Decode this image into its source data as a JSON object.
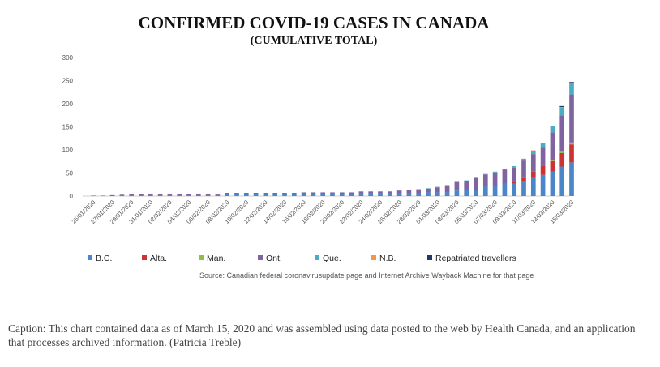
{
  "caption": "Caption: This chart contained data as of March 15, 2020 and was assembled using data posted to the web by Health Canada, and an application that processes archived information. (Patricia Treble)",
  "chart_data": {
    "type": "bar",
    "stacked": true,
    "title": "CONFIRMED COVID-19 CASES IN CANADA",
    "subtitle": "(CUMULATIVE TOTAL)",
    "ylim": [
      0,
      300
    ],
    "yticks": [
      0,
      50,
      100,
      150,
      200,
      250,
      300
    ],
    "grid": false,
    "legend_position": "bottom",
    "source": "Source: Canadian federal coronavirusupdate page and Internet Archive Wayback Machine for that page",
    "x_tick_labels": [
      "25/01/2020",
      "27/01/2020",
      "29/01/2020",
      "31/01/2020",
      "02/02/2020",
      "04/02/2020",
      "06/02/2020",
      "08/02/2020",
      "10/02/2020",
      "12/02/2020",
      "14/02/2020",
      "16/02/2020",
      "18/02/2020",
      "20/02/2020",
      "22/02/2020",
      "24/02/2020",
      "26/02/2020",
      "28/02/2020",
      "01/03/2020",
      "03/03/2020",
      "05/03/2020",
      "07/03/2020",
      "09/03/2020",
      "11/03/2020",
      "13/03/2020",
      "15/03/2020"
    ],
    "categories": [
      "25/01/2020",
      "26/01/2020",
      "27/01/2020",
      "28/01/2020",
      "29/01/2020",
      "30/01/2020",
      "31/01/2020",
      "01/02/2020",
      "02/02/2020",
      "03/02/2020",
      "04/02/2020",
      "05/02/2020",
      "06/02/2020",
      "07/02/2020",
      "08/02/2020",
      "09/02/2020",
      "10/02/2020",
      "11/02/2020",
      "12/02/2020",
      "13/02/2020",
      "14/02/2020",
      "15/02/2020",
      "16/02/2020",
      "17/02/2020",
      "18/02/2020",
      "19/02/2020",
      "20/02/2020",
      "21/02/2020",
      "22/02/2020",
      "23/02/2020",
      "24/02/2020",
      "25/02/2020",
      "26/02/2020",
      "27/02/2020",
      "28/02/2020",
      "29/02/2020",
      "01/03/2020",
      "02/03/2020",
      "03/03/2020",
      "04/03/2020",
      "05/03/2020",
      "06/03/2020",
      "07/03/2020",
      "08/03/2020",
      "09/03/2020",
      "10/03/2020",
      "11/03/2020",
      "12/03/2020",
      "13/03/2020",
      "14/03/2020",
      "15/03/2020"
    ],
    "series": [
      {
        "name": "B.C.",
        "color": "#4a86c8",
        "values": [
          0,
          0,
          0,
          1,
          1,
          1,
          1,
          1,
          1,
          1,
          1,
          1,
          1,
          2,
          4,
          4,
          4,
          4,
          4,
          4,
          4,
          4,
          5,
          5,
          5,
          5,
          5,
          5,
          6,
          6,
          6,
          6,
          7,
          7,
          7,
          8,
          8,
          8,
          12,
          13,
          14,
          21,
          21,
          27,
          27,
          32,
          39,
          46,
          53,
          64,
          73
        ]
      },
      {
        "name": "Alta.",
        "color": "#cc3333",
        "values": [
          0,
          0,
          0,
          0,
          0,
          0,
          0,
          0,
          0,
          0,
          0,
          0,
          0,
          0,
          0,
          0,
          0,
          0,
          0,
          0,
          0,
          0,
          0,
          0,
          0,
          0,
          0,
          0,
          0,
          0,
          0,
          0,
          0,
          0,
          0,
          0,
          0,
          0,
          0,
          0,
          1,
          1,
          1,
          1,
          4,
          7,
          14,
          19,
          23,
          29,
          39
        ]
      },
      {
        "name": "Man.",
        "color": "#8cc04a",
        "values": [
          0,
          0,
          0,
          0,
          0,
          0,
          0,
          0,
          0,
          0,
          0,
          0,
          0,
          0,
          0,
          0,
          0,
          0,
          0,
          0,
          0,
          0,
          0,
          0,
          0,
          0,
          0,
          0,
          0,
          0,
          0,
          0,
          0,
          0,
          0,
          0,
          0,
          0,
          0,
          0,
          0,
          0,
          0,
          0,
          0,
          0,
          0,
          0,
          1,
          3,
          4
        ]
      },
      {
        "name": "Ont.",
        "color": "#8064a2",
        "values": [
          1,
          1,
          2,
          2,
          3,
          3,
          3,
          3,
          3,
          3,
          3,
          3,
          3,
          3,
          3,
          3,
          3,
          3,
          3,
          3,
          3,
          3,
          3,
          3,
          3,
          3,
          3,
          3,
          4,
          4,
          4,
          4,
          5,
          6,
          7,
          8,
          11,
          15,
          18,
          20,
          24,
          25,
          29,
          29,
          31,
          38,
          38,
          40,
          61,
          79,
          104
        ]
      },
      {
        "name": "Que.",
        "color": "#4bacc6",
        "values": [
          0,
          0,
          0,
          0,
          0,
          0,
          0,
          0,
          0,
          0,
          0,
          0,
          0,
          0,
          0,
          0,
          0,
          0,
          0,
          0,
          0,
          0,
          0,
          0,
          0,
          0,
          0,
          0,
          0,
          0,
          0,
          0,
          0,
          0,
          1,
          1,
          1,
          1,
          1,
          1,
          1,
          1,
          2,
          2,
          3,
          4,
          7,
          9,
          13,
          17,
          24
        ]
      },
      {
        "name": "N.B.",
        "color": "#f79646",
        "values": [
          0,
          0,
          0,
          0,
          0,
          0,
          0,
          0,
          0,
          0,
          0,
          0,
          0,
          0,
          0,
          0,
          0,
          0,
          0,
          0,
          0,
          0,
          0,
          0,
          0,
          0,
          0,
          0,
          0,
          0,
          0,
          0,
          0,
          0,
          0,
          0,
          0,
          0,
          0,
          0,
          0,
          0,
          0,
          0,
          0,
          0,
          1,
          1,
          1,
          1,
          1
        ]
      },
      {
        "name": "Repatriated travellers",
        "color": "#1f3864",
        "values": [
          0,
          0,
          0,
          0,
          0,
          0,
          0,
          0,
          0,
          0,
          0,
          0,
          0,
          0,
          0,
          0,
          0,
          0,
          0,
          0,
          0,
          0,
          0,
          0,
          0,
          0,
          0,
          0,
          0,
          0,
          0,
          0,
          0,
          0,
          0,
          0,
          0,
          0,
          0,
          0,
          0,
          0,
          0,
          0,
          0,
          0,
          0,
          0,
          0,
          2,
          2
        ]
      }
    ]
  }
}
